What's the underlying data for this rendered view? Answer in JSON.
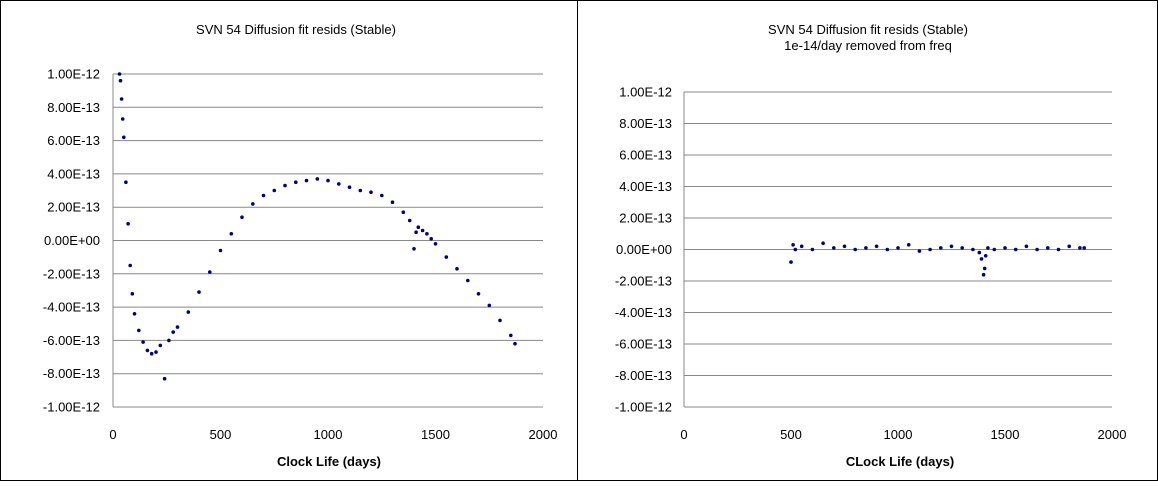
{
  "chart_data": [
    {
      "type": "scatter",
      "title": "SVN 54 Diffusion fit resids (Stable)",
      "subtitle": "",
      "xlabel": "Clock Life (days)",
      "ylabel": "",
      "xlim": [
        0,
        2000
      ],
      "ylim": [
        -1e-12,
        1e-12
      ],
      "x_ticks": [
        "0",
        "500",
        "1000",
        "1500",
        "2000"
      ],
      "y_ticks": [
        "1.00E-12",
        "8.00E-13",
        "6.00E-13",
        "4.00E-13",
        "2.00E-13",
        "0.00E+00",
        "-2.00E-13",
        "-4.00E-13",
        "-6.00E-13",
        "-8.00E-13",
        "-1.00E-12"
      ],
      "grid": "horizontal",
      "color": "#000080",
      "x": [
        30,
        35,
        40,
        45,
        50,
        60,
        70,
        80,
        90,
        100,
        120,
        140,
        160,
        180,
        200,
        220,
        240,
        260,
        280,
        300,
        350,
        400,
        450,
        500,
        550,
        600,
        650,
        700,
        750,
        800,
        850,
        900,
        950,
        1000,
        1050,
        1100,
        1150,
        1200,
        1250,
        1300,
        1350,
        1380,
        1400,
        1410,
        1420,
        1440,
        1460,
        1480,
        1500,
        1550,
        1600,
        1650,
        1700,
        1750,
        1800,
        1850,
        1870
      ],
      "y": [
        1e-12,
        9.6e-13,
        8.5e-13,
        7.3e-13,
        6.2e-13,
        3.5e-13,
        1e-13,
        -1.5e-13,
        -3.2e-13,
        -4.4e-13,
        -5.4e-13,
        -6.1e-13,
        -6.6e-13,
        -6.8e-13,
        -6.7e-13,
        -6.3e-13,
        -8.3e-13,
        -6e-13,
        -5.5e-13,
        -5.2e-13,
        -4.3e-13,
        -3.1e-13,
        -1.9e-13,
        -6e-14,
        4e-14,
        1.4e-13,
        2.2e-13,
        2.7e-13,
        3e-13,
        3.3e-13,
        3.5e-13,
        3.6e-13,
        3.7e-13,
        3.6e-13,
        3.4e-13,
        3.2e-13,
        3e-13,
        2.9e-13,
        2.7e-13,
        2.3e-13,
        1.7e-13,
        1.2e-13,
        -5e-14,
        5e-14,
        8e-14,
        6e-14,
        4e-14,
        1e-14,
        -2e-14,
        -1e-13,
        -1.7e-13,
        -2.4e-13,
        -3.2e-13,
        -3.9e-13,
        -4.8e-13,
        -5.7e-13,
        -6.2e-13
      ]
    },
    {
      "type": "scatter",
      "title": "SVN 54 Diffusion fit resids (Stable)",
      "subtitle": "1e-14/day removed from freq",
      "xlabel": "CLock Life (days)",
      "ylabel": "",
      "xlim": [
        0,
        2000
      ],
      "ylim": [
        -1e-12,
        1e-12
      ],
      "x_ticks": [
        "0",
        "500",
        "1000",
        "1500",
        "2000"
      ],
      "y_ticks": [
        "1.00E-12",
        "8.00E-13",
        "6.00E-13",
        "4.00E-13",
        "2.00E-13",
        "0.00E+00",
        "-2.00E-13",
        "-4.00E-13",
        "-6.00E-13",
        "-8.00E-13",
        "-1.00E-12"
      ],
      "grid": "horizontal",
      "color": "#000080",
      "x": [
        500,
        510,
        520,
        550,
        600,
        650,
        700,
        750,
        800,
        850,
        900,
        950,
        1000,
        1050,
        1100,
        1150,
        1200,
        1250,
        1300,
        1350,
        1380,
        1390,
        1400,
        1405,
        1410,
        1420,
        1450,
        1500,
        1550,
        1600,
        1650,
        1700,
        1750,
        1800,
        1850,
        1870
      ],
      "y": [
        -8e-14,
        3e-14,
        0.0,
        2e-14,
        0.0,
        4e-14,
        1e-14,
        2e-14,
        0.0,
        1e-14,
        2e-14,
        0.0,
        1e-14,
        3e-14,
        -1e-14,
        0.0,
        1e-14,
        2e-14,
        1e-14,
        0.0,
        -2e-14,
        -6e-14,
        -1.6e-13,
        -1.2e-13,
        -4e-14,
        1e-14,
        0.0,
        1e-14,
        0.0,
        2e-14,
        0.0,
        1e-14,
        0.0,
        2e-14,
        1e-14,
        1e-14
      ]
    }
  ]
}
